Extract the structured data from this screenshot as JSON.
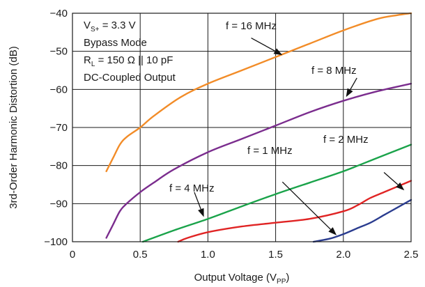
{
  "chart_data": {
    "type": "line",
    "xlabel": "Output Voltage (V",
    "xlabel_sub": "PP",
    "ylabel": "3rd-Order Harmonic Distortion (dB)",
    "xlim": [
      0,
      2.5
    ],
    "ylim": [
      -100,
      -40
    ],
    "x_ticks": [
      "0",
      "0.5",
      "1.0",
      "1.5",
      "2.0",
      "2.5"
    ],
    "y_ticks": [
      "−100",
      "−90",
      "−80",
      "−70",
      "−60",
      "−50",
      "−40"
    ],
    "x_tick_values": [
      0,
      0.5,
      1.0,
      1.5,
      2.0,
      2.5
    ],
    "y_tick_values": [
      -100,
      -90,
      -80,
      -70,
      -60,
      -50,
      -40
    ],
    "grid": true,
    "conditions": {
      "vs_label": "V",
      "vs_sub": "S+",
      "vs_value": " = 3.3 V",
      "mode": "Bypass Mode",
      "rl_label": "R",
      "rl_sub": "L",
      "rl_value": " = 150 Ω || 10 pF",
      "coupling": "DC-Coupled Output"
    },
    "series": [
      {
        "name": "f = 16 MHz",
        "color": "#f28c28",
        "x": [
          0.25,
          0.3,
          0.35,
          0.4,
          0.5,
          0.6,
          0.8,
          1.0,
          1.25,
          1.5,
          1.75,
          2.0,
          2.25,
          2.4,
          2.5
        ],
        "y": [
          -81.5,
          -78,
          -74.5,
          -72.5,
          -70,
          -67,
          -62,
          -58.5,
          -55,
          -51.5,
          -48,
          -44.5,
          -41.5,
          -40.5,
          -40
        ],
        "arrow_from": [
          1.32,
          -46.5
        ],
        "arrow_to": [
          1.55,
          -51
        ]
      },
      {
        "name": "f = 8 MHz",
        "color": "#7b2d8e",
        "x": [
          0.25,
          0.3,
          0.35,
          0.4,
          0.5,
          0.6,
          0.75,
          1.0,
          1.25,
          1.5,
          1.75,
          2.0,
          2.25,
          2.5
        ],
        "y": [
          -99,
          -95.5,
          -92,
          -90,
          -87,
          -84.5,
          -81,
          -76.5,
          -73,
          -69.5,
          -66,
          -63,
          -60.5,
          -58.5
        ],
        "arrow_from": [
          2.1,
          -57
        ],
        "arrow_to": [
          2.02,
          -62
        ]
      },
      {
        "name": "f = 4 MHz",
        "color": "#1aa34a",
        "x": [
          0.52,
          0.75,
          1.0,
          1.25,
          1.5,
          1.75,
          2.0,
          2.25,
          2.5
        ],
        "y": [
          -100,
          -97,
          -94,
          -90.7,
          -87.5,
          -84.5,
          -81.5,
          -78,
          -74.5
        ],
        "arrow_from": [
          0.9,
          -87
        ],
        "arrow_to": [
          0.97,
          -93.5
        ]
      },
      {
        "name": "f = 1 MHz",
        "color": "#e02424",
        "x": [
          0.78,
          0.85,
          1.0,
          1.25,
          1.5,
          1.75,
          2.0,
          2.1,
          2.2,
          2.3,
          2.4,
          2.5
        ],
        "y": [
          -100,
          -99,
          -97.5,
          -96,
          -95,
          -94,
          -92,
          -90.5,
          -88.5,
          -87,
          -85.5,
          -84
        ],
        "arrow_from": [
          1.55,
          -84.3
        ],
        "arrow_to": [
          1.95,
          -98.3
        ]
      },
      {
        "name": "f = 2 MHz",
        "color": "#2a3c8f",
        "x": [
          1.78,
          1.9,
          2.0,
          2.1,
          2.2,
          2.3,
          2.4,
          2.5
        ],
        "y": [
          -100,
          -99.2,
          -98,
          -96.5,
          -95,
          -93,
          -91,
          -89
        ],
        "arrow_from": [
          2.3,
          -81.8
        ],
        "arrow_to": [
          2.45,
          -86.5
        ]
      }
    ]
  }
}
